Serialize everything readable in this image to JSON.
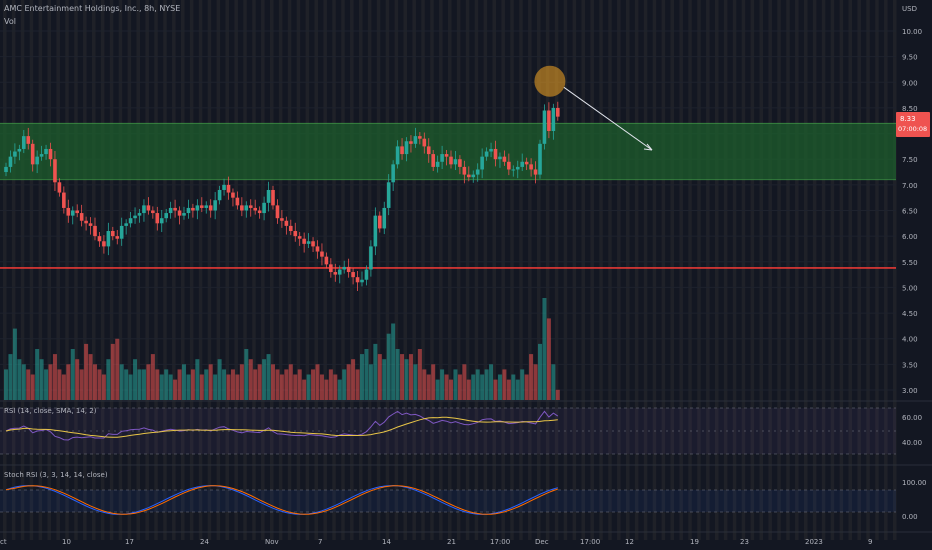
{
  "header": {
    "title": "AMC Entertainment Holdings, Inc., 8h, NYSE",
    "vol_label": "Vol",
    "currency": "USD"
  },
  "price_badge": {
    "value": "8.33",
    "countdown": "07:00:08"
  },
  "colors": {
    "background": "#131722",
    "up": "#26a69a",
    "down": "#ef5350",
    "zone_fill": "#1e5d2c",
    "zone_border": "#4caf50",
    "support_line": "#e53935",
    "circle_fill": "#f5a623",
    "rsi_line": "#7e57c2",
    "rsi_ma": "#e8c547",
    "stoch_k": "#2962ff",
    "stoch_d": "#ff6d00"
  },
  "rsi_panel": {
    "label": "RSI (14, close, SMA, 14, 2)",
    "ticks": [
      "60.00",
      "40.00"
    ]
  },
  "stoch_panel": {
    "label": "Stoch RSI (3, 3, 14, 14, close)",
    "ticks": [
      "100.00",
      "0.00"
    ]
  },
  "x_axis_labels": [
    "ct",
    "10",
    "17",
    "24",
    "Nov",
    "7",
    "14",
    "21",
    "17:00",
    "Dec",
    "17:00",
    "12",
    "19",
    "23",
    "2023",
    "9"
  ],
  "chart_data": {
    "type": "candlestick",
    "title": "AMC Entertainment Holdings, Inc., 8h, NYSE",
    "interval": "8h",
    "exchange": "NYSE",
    "y_axis": {
      "label": "USD",
      "ylim": [
        2.8,
        10.5
      ],
      "ticks": [
        "10.00",
        "9.50",
        "9.00",
        "8.50",
        "8.00",
        "7.50",
        "7.00",
        "6.50",
        "6.00",
        "5.50",
        "5.00",
        "4.50",
        "4.00",
        "3.50",
        "3.00"
      ]
    },
    "close": [
      7.35,
      7.55,
      7.65,
      7.7,
      7.95,
      7.8,
      7.4,
      7.55,
      7.6,
      7.7,
      7.5,
      7.05,
      6.85,
      6.55,
      6.4,
      6.5,
      6.45,
      6.3,
      6.25,
      6.2,
      6.0,
      5.9,
      5.8,
      6.1,
      6.0,
      5.95,
      6.2,
      6.25,
      6.35,
      6.4,
      6.45,
      6.6,
      6.5,
      6.45,
      6.25,
      6.35,
      6.45,
      6.55,
      6.5,
      6.4,
      6.45,
      6.55,
      6.5,
      6.6,
      6.55,
      6.6,
      6.5,
      6.7,
      6.9,
      7.0,
      6.85,
      6.75,
      6.6,
      6.5,
      6.6,
      6.55,
      6.5,
      6.45,
      6.65,
      6.9,
      6.6,
      6.35,
      6.3,
      6.2,
      6.1,
      6.0,
      5.95,
      5.85,
      5.9,
      5.8,
      5.7,
      5.6,
      5.45,
      5.3,
      5.25,
      5.35,
      5.4,
      5.3,
      5.2,
      5.1,
      5.15,
      5.35,
      5.8,
      6.4,
      6.15,
      6.55,
      7.05,
      7.4,
      7.75,
      7.6,
      7.85,
      7.8,
      7.95,
      7.9,
      7.75,
      7.6,
      7.35,
      7.45,
      7.6,
      7.55,
      7.4,
      7.5,
      7.35,
      7.2,
      7.15,
      7.2,
      7.3,
      7.55,
      7.65,
      7.7,
      7.5,
      7.55,
      7.45,
      7.3,
      7.3,
      7.35,
      7.45,
      7.4,
      7.3,
      7.2,
      7.8,
      8.45,
      8.05,
      8.5,
      8.33
    ],
    "volume_relative": [
      0.3,
      0.45,
      0.7,
      0.4,
      0.35,
      0.3,
      0.25,
      0.5,
      0.4,
      0.3,
      0.35,
      0.45,
      0.3,
      0.25,
      0.35,
      0.5,
      0.4,
      0.3,
      0.55,
      0.45,
      0.35,
      0.3,
      0.25,
      0.4,
      0.55,
      0.6,
      0.35,
      0.3,
      0.25,
      0.4,
      0.3,
      0.3,
      0.35,
      0.45,
      0.3,
      0.25,
      0.3,
      0.25,
      0.2,
      0.3,
      0.35,
      0.25,
      0.3,
      0.4,
      0.25,
      0.3,
      0.35,
      0.25,
      0.4,
      0.3,
      0.25,
      0.3,
      0.25,
      0.35,
      0.5,
      0.4,
      0.3,
      0.35,
      0.4,
      0.45,
      0.35,
      0.3,
      0.25,
      0.3,
      0.35,
      0.25,
      0.3,
      0.2,
      0.25,
      0.3,
      0.35,
      0.25,
      0.2,
      0.3,
      0.25,
      0.2,
      0.3,
      0.35,
      0.4,
      0.3,
      0.45,
      0.5,
      0.35,
      0.55,
      0.45,
      0.4,
      0.65,
      0.75,
      0.5,
      0.45,
      0.4,
      0.45,
      0.35,
      0.5,
      0.3,
      0.25,
      0.35,
      0.2,
      0.3,
      0.25,
      0.2,
      0.3,
      0.25,
      0.35,
      0.2,
      0.25,
      0.3,
      0.25,
      0.3,
      0.35,
      0.2,
      0.25,
      0.3,
      0.2,
      0.25,
      0.2,
      0.3,
      0.25,
      0.45,
      0.35,
      0.55,
      1.0,
      0.8,
      0.35,
      0.1
    ],
    "resistance_zone": {
      "low": 7.1,
      "high": 8.2
    },
    "support_line": 5.38,
    "highlight_circle_price": 9.0
  }
}
